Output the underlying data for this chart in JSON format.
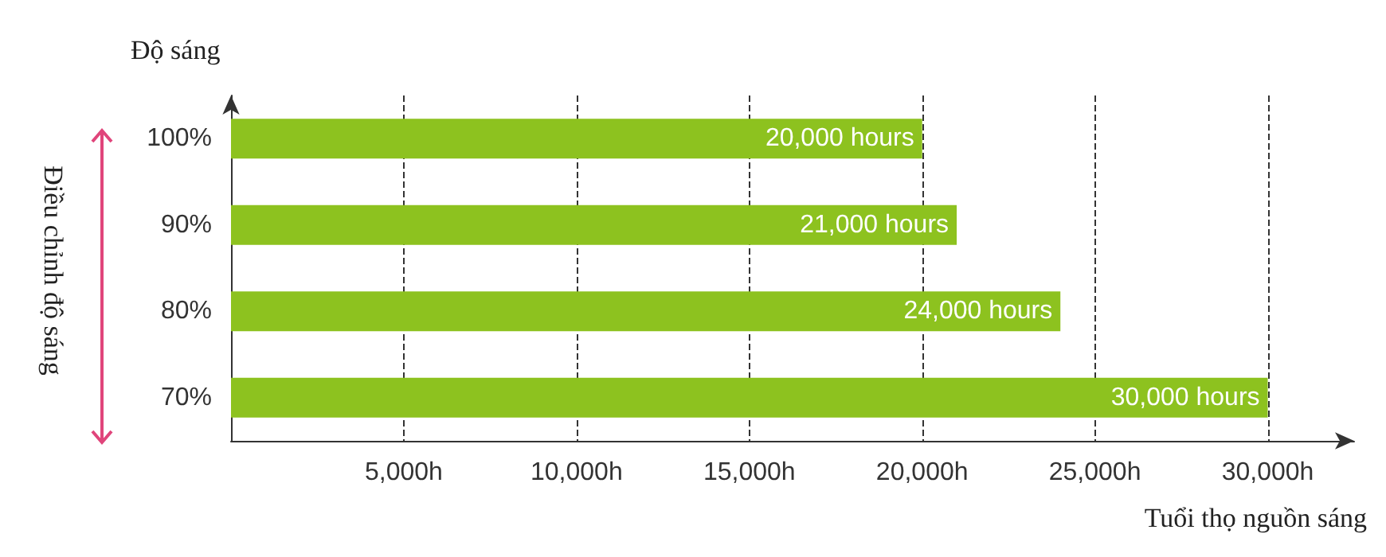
{
  "chart_data": {
    "type": "bar",
    "orientation": "horizontal",
    "ylabel": "Độ sáng",
    "xlabel": "Tuổi thọ nguồn sáng",
    "annotations": [
      "Điều chỉnh độ sáng"
    ],
    "categories": [
      "100%",
      "90%",
      "80%",
      "70%"
    ],
    "values": [
      20000,
      21000,
      24000,
      30000
    ],
    "value_labels": [
      "20,000 hours",
      "21,000 hours",
      "24,000 hours",
      "30,000 hours"
    ],
    "color": "#8dc21f",
    "xlim": [
      0,
      32500
    ],
    "xticks": [
      {
        "value": 5000,
        "label": "5,000h"
      },
      {
        "value": 10000,
        "label": "10,000h"
      },
      {
        "value": 15000,
        "label": "15,000h"
      },
      {
        "value": 20000,
        "label": "20,000h"
      },
      {
        "value": 25000,
        "label": "25,000h"
      },
      {
        "value": 30000,
        "label": "30,000h"
      }
    ],
    "grid": "x"
  }
}
